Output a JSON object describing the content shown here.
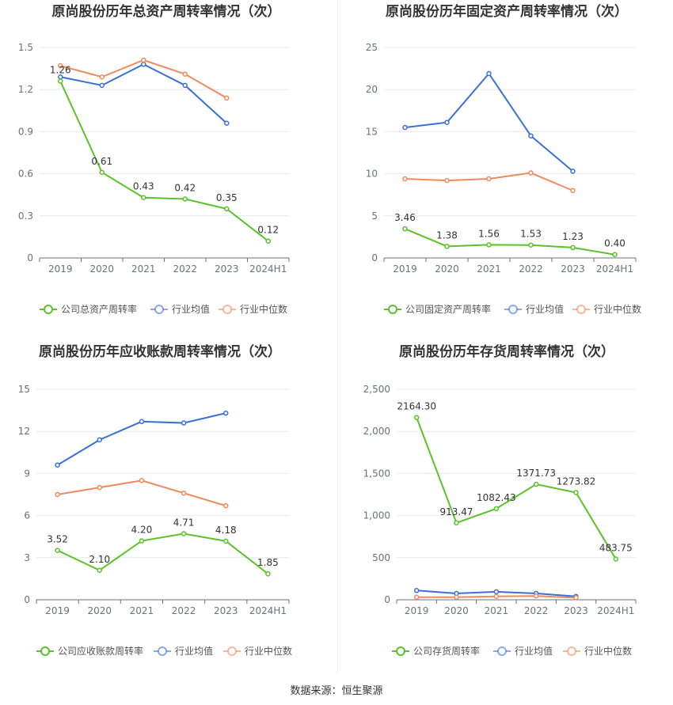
{
  "colors": {
    "company": "#5bc229",
    "avg": "#3b6fd8",
    "median": "#f08a5d",
    "grid": "#e6e9f0",
    "axis": "#6e7079"
  },
  "legend": {
    "avg_label": "行业均值",
    "median_label": "行业中位数"
  },
  "footer": {
    "source": "数据来源：恒生聚源"
  },
  "chart_data": [
    {
      "type": "line",
      "title": "原尚股份历年总资产周转率情况（次）",
      "categories": [
        "2019",
        "2020",
        "2021",
        "2022",
        "2023",
        "2024H1"
      ],
      "ylim": [
        0,
        1.5
      ],
      "yticks": [
        "0",
        "0.3",
        "0.6",
        "0.9",
        "1.2",
        "1.5"
      ],
      "series": [
        {
          "name": "公司总资产周转率",
          "role": "company",
          "values": [
            1.26,
            0.61,
            0.43,
            0.42,
            0.35,
            0.12
          ],
          "labels": [
            "1.26",
            "0.61",
            "0.43",
            "0.42",
            "0.35",
            "0.12"
          ]
        },
        {
          "name": "行业均值",
          "role": "avg",
          "values": [
            1.29,
            1.23,
            1.38,
            1.23,
            0.96,
            null
          ]
        },
        {
          "name": "行业中位数",
          "role": "median",
          "values": [
            1.37,
            1.29,
            1.41,
            1.31,
            1.14,
            null
          ]
        }
      ]
    },
    {
      "type": "line",
      "title": "原尚股份历年固定资产周转率情况（次）",
      "categories": [
        "2019",
        "2020",
        "2021",
        "2022",
        "2023",
        "2024H1"
      ],
      "ylim": [
        0,
        25
      ],
      "yticks": [
        "0",
        "5",
        "10",
        "15",
        "20",
        "25"
      ],
      "series": [
        {
          "name": "公司固定资产周转率",
          "role": "company",
          "values": [
            3.46,
            1.38,
            1.56,
            1.53,
            1.23,
            0.4
          ],
          "labels": [
            "3.46",
            "1.38",
            "1.56",
            "1.53",
            "1.23",
            "0.40"
          ]
        },
        {
          "name": "行业均值",
          "role": "avg",
          "values": [
            15.5,
            16.1,
            21.9,
            14.5,
            10.3,
            null
          ]
        },
        {
          "name": "行业中位数",
          "role": "median",
          "values": [
            9.4,
            9.2,
            9.4,
            10.1,
            8.0,
            null
          ]
        }
      ]
    },
    {
      "type": "line",
      "title": "原尚股份历年应收账款周转率情况（次）",
      "categories": [
        "2019",
        "2020",
        "2021",
        "2022",
        "2023",
        "2024H1"
      ],
      "ylim": [
        0,
        15
      ],
      "yticks": [
        "0",
        "3",
        "6",
        "9",
        "12",
        "15"
      ],
      "series": [
        {
          "name": "公司应收账款周转率",
          "role": "company",
          "values": [
            3.52,
            2.1,
            4.2,
            4.71,
            4.18,
            1.85
          ],
          "labels": [
            "3.52",
            "2.10",
            "4.20",
            "4.71",
            "4.18",
            "1.85"
          ]
        },
        {
          "name": "行业均值",
          "role": "avg",
          "values": [
            9.6,
            11.4,
            12.7,
            12.6,
            13.3,
            null
          ]
        },
        {
          "name": "行业中位数",
          "role": "median",
          "values": [
            7.5,
            8.0,
            8.5,
            7.6,
            6.7,
            null
          ]
        }
      ]
    },
    {
      "type": "line",
      "title": "原尚股份历年存货周转率情况（次）",
      "categories": [
        "2019",
        "2020",
        "2021",
        "2022",
        "2023",
        "2024H1"
      ],
      "ylim": [
        0,
        2500
      ],
      "yticks": [
        "0",
        "500",
        "1,000",
        "1,500",
        "2,000",
        "2,500"
      ],
      "series": [
        {
          "name": "公司存货周转率",
          "role": "company",
          "values": [
            2164.3,
            913.47,
            1082.43,
            1371.73,
            1273.82,
            483.75
          ],
          "labels": [
            "2164.30",
            "913.47",
            "1082.43",
            "1371.73",
            "1273.82",
            "483.75"
          ]
        },
        {
          "name": "行业均值",
          "role": "avg",
          "values": [
            110,
            75,
            95,
            75,
            40,
            null
          ]
        },
        {
          "name": "行业中位数",
          "role": "median",
          "values": [
            30,
            30,
            40,
            45,
            25,
            null
          ]
        }
      ]
    }
  ]
}
